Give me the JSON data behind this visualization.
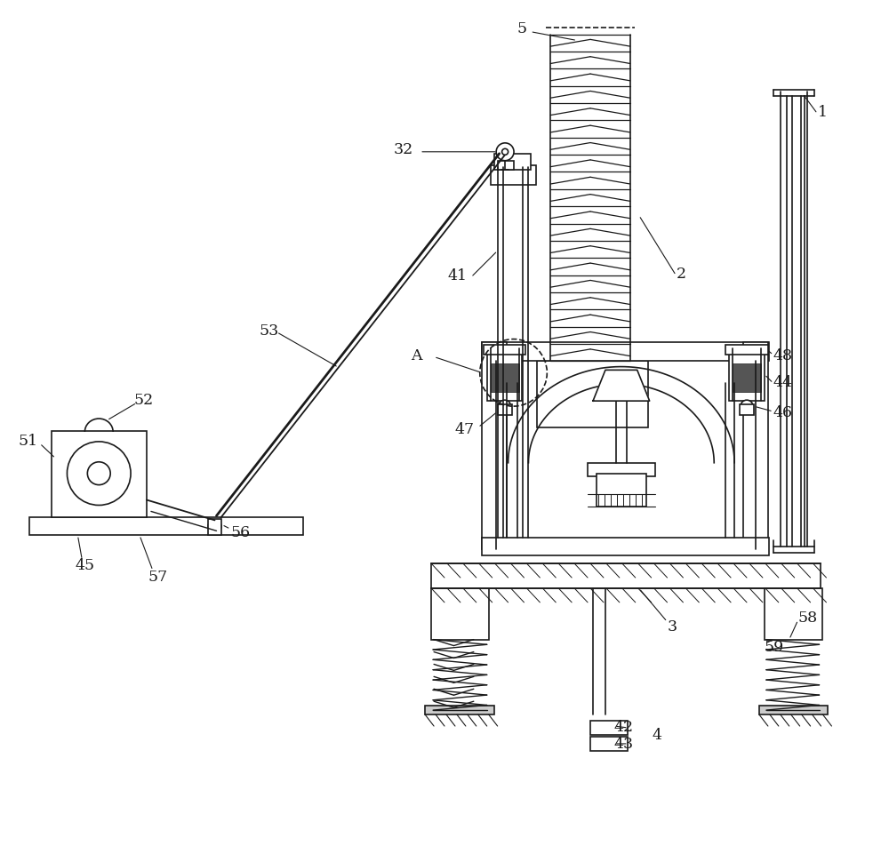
{
  "bg_color": "#ffffff",
  "line_color": "#1a1a1a",
  "label_color": "#1a1a1a",
  "fig_width": 10.0,
  "fig_height": 9.62
}
